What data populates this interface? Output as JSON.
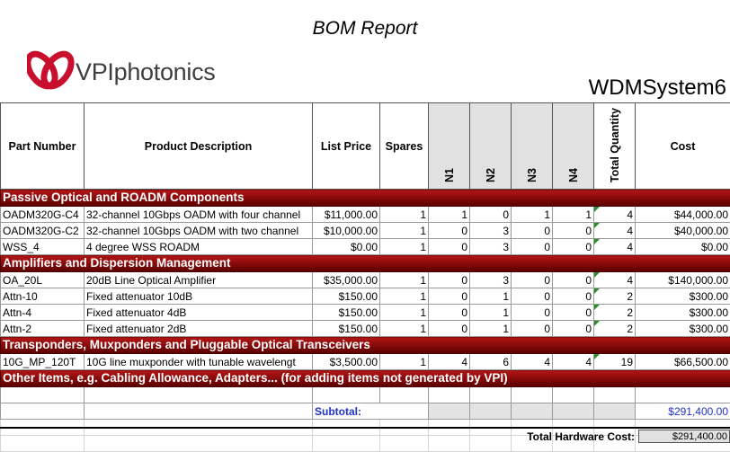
{
  "report_title": "BOM Report",
  "logo_text": "VPIphotonics",
  "system_name": "WDMSystem6",
  "headers": {
    "part_number": "Part Number",
    "description": "Product Description",
    "list_price": "List Price",
    "spares": "Spares",
    "n1": "N1",
    "n2": "N2",
    "n3": "N3",
    "n4": "N4",
    "total_quantity": "Total Quantity",
    "cost": "Cost"
  },
  "sections": [
    {
      "title": "Passive Optical and ROADM Components",
      "rows": [
        {
          "part": "OADM320G-C4",
          "desc": "32-channel 10Gbps OADM with four channel",
          "price": "$11,000.00",
          "spares": "1",
          "n1": "1",
          "n2": "0",
          "n3": "1",
          "n4": "1",
          "qty": "4",
          "cost": "$44,000.00"
        },
        {
          "part": "OADM320G-C2",
          "desc": "32-channel 10Gbps OADM with two channel",
          "price": "$10,000.00",
          "spares": "1",
          "n1": "0",
          "n2": "3",
          "n3": "0",
          "n4": "0",
          "qty": "4",
          "cost": "$40,000.00"
        },
        {
          "part": "WSS_4",
          "desc": "4 degree WSS ROADM",
          "price": "$0.00",
          "spares": "1",
          "n1": "0",
          "n2": "3",
          "n3": "0",
          "n4": "0",
          "qty": "4",
          "cost": "$0.00"
        }
      ]
    },
    {
      "title": "Amplifiers and Dispersion Management",
      "rows": [
        {
          "part": "OA_20L",
          "desc": "20dB Line Optical Amplifier",
          "price": "$35,000.00",
          "spares": "1",
          "n1": "0",
          "n2": "3",
          "n3": "0",
          "n4": "0",
          "qty": "4",
          "cost": "$140,000.00"
        },
        {
          "part": "Attn-10",
          "desc": "Fixed attenuator 10dB",
          "price": "$150.00",
          "spares": "1",
          "n1": "0",
          "n2": "1",
          "n3": "0",
          "n4": "0",
          "qty": "2",
          "cost": "$300.00"
        },
        {
          "part": "Attn-4",
          "desc": "Fixed attenuator 4dB",
          "price": "$150.00",
          "spares": "1",
          "n1": "0",
          "n2": "1",
          "n3": "0",
          "n4": "0",
          "qty": "2",
          "cost": "$300.00"
        },
        {
          "part": "Attn-2",
          "desc": "Fixed attenuator 2dB",
          "price": "$150.00",
          "spares": "1",
          "n1": "0",
          "n2": "1",
          "n3": "0",
          "n4": "0",
          "qty": "2",
          "cost": "$300.00"
        }
      ]
    },
    {
      "title": "Transponders, Muxponders and Pluggable Optical Transceivers",
      "rows": [
        {
          "part": "10G_MP_120T",
          "desc": "10G line muxponder with tunable wavelengt",
          "price": "$3,500.00",
          "spares": "1",
          "n1": "4",
          "n2": "6",
          "n3": "4",
          "n4": "4",
          "qty": "19",
          "cost": "$66,500.00"
        }
      ]
    },
    {
      "title": "Other Items, e.g. Cabling Allowance, Adapters... (for adding items not generated by VPI)",
      "rows": []
    }
  ],
  "subtotal": {
    "label": "Subtotal:",
    "value": "$291,400.00"
  },
  "total": {
    "label": "Total Hardware Cost:",
    "value": "$291,400.00"
  },
  "colors": {
    "section_bar": "#8b0a0a",
    "subtotal_text": "#2233cc",
    "header_shade": "#e1e1e1",
    "logo_red": "#c8102e"
  }
}
